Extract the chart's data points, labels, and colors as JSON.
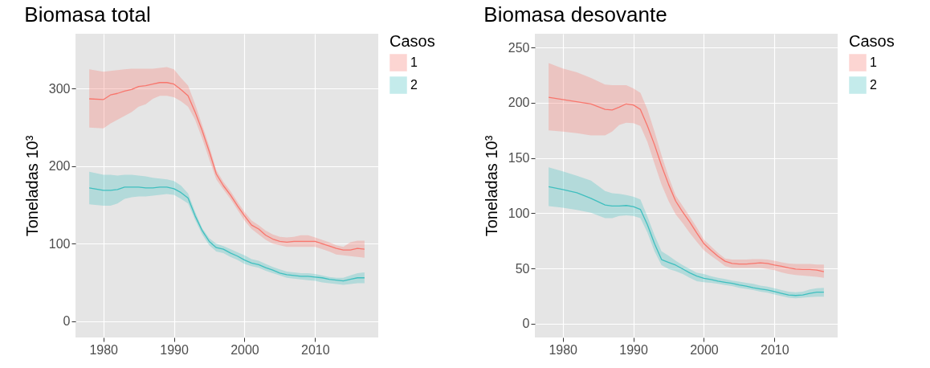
{
  "chart_data": [
    {
      "type": "line",
      "title": "Biomasa total",
      "ylabel": "Toneladas 10³",
      "legend_title": "Casos",
      "legend": "right",
      "grid": true,
      "x": [
        1978,
        1980,
        1981,
        1982,
        1983,
        1984,
        1985,
        1986,
        1987,
        1988,
        1989,
        1990,
        1991,
        1992,
        1993,
        1994,
        1995,
        1996,
        1997,
        1998,
        1999,
        2000,
        2001,
        2002,
        2003,
        2004,
        2005,
        2006,
        2007,
        2008,
        2009,
        2010,
        2011,
        2012,
        2013,
        2014,
        2015,
        2016,
        2017
      ],
      "xlim": [
        1976.05,
        2018.95
      ],
      "xticks": [
        1980,
        1990,
        2000,
        2010
      ],
      "ylim": [
        -21,
        371
      ],
      "yticks": [
        0,
        100,
        200,
        300
      ],
      "series": [
        {
          "name": "1",
          "color": "#f8766d",
          "values": [
            287,
            286,
            292,
            294,
            297,
            299,
            303,
            304,
            306,
            308,
            308,
            306,
            299,
            291,
            270,
            246,
            219,
            190,
            175,
            163,
            149,
            136,
            124,
            119,
            111,
            106,
            103,
            102,
            103,
            103,
            103,
            103,
            100,
            97,
            94,
            92,
            92,
            94,
            93
          ],
          "lower": [
            250,
            249,
            255,
            260,
            265,
            270,
            277,
            280,
            287,
            291,
            291,
            289,
            284,
            277,
            260,
            236,
            209,
            183,
            170,
            158,
            144,
            130,
            119,
            112,
            105,
            100,
            98,
            96,
            96,
            96,
            96,
            96,
            93,
            90,
            86,
            85,
            84,
            83,
            82
          ],
          "upper": [
            325,
            322,
            323,
            324,
            325,
            326,
            326,
            326,
            326,
            327,
            328,
            325,
            314,
            304,
            280,
            253,
            226,
            195,
            180,
            168,
            154,
            141,
            130,
            124,
            117,
            112,
            109,
            108,
            109,
            111,
            111,
            108,
            105,
            102,
            98,
            96,
            102,
            104,
            104
          ]
        },
        {
          "name": "2",
          "color": "#3fbfbf",
          "values": [
            172,
            169,
            169,
            170,
            173,
            173,
            173,
            172,
            172,
            173,
            173,
            171,
            166,
            159,
            136,
            117,
            103,
            95,
            93,
            88,
            84,
            79,
            75,
            73,
            69,
            66,
            62,
            60,
            59,
            58,
            58,
            57,
            56,
            54,
            53,
            52,
            54,
            56,
            56
          ],
          "lower": [
            151,
            149,
            149,
            152,
            158,
            160,
            161,
            161,
            162,
            163,
            164,
            163,
            158,
            152,
            131,
            112,
            98,
            90,
            88,
            83,
            79,
            74,
            71,
            69,
            65,
            62,
            59,
            56,
            55,
            54,
            53,
            52,
            50,
            49,
            48,
            47,
            48,
            49,
            49
          ],
          "upper": [
            193,
            189,
            189,
            188,
            189,
            189,
            188,
            187,
            185,
            184,
            183,
            181,
            175,
            165,
            141,
            120,
            107,
            100,
            97,
            93,
            89,
            85,
            80,
            78,
            74,
            70,
            67,
            64,
            63,
            62,
            62,
            61,
            59,
            57,
            56,
            56,
            59,
            62,
            63
          ]
        }
      ]
    },
    {
      "type": "line",
      "title": "Biomasa desovante",
      "ylabel": "Toneladas 10³",
      "legend_title": "Casos",
      "legend": "right",
      "grid": true,
      "x": [
        1978,
        1980,
        1982,
        1984,
        1986,
        1987,
        1988,
        1989,
        1990,
        1991,
        1992,
        1993,
        1994,
        1995,
        1996,
        1997,
        1998,
        1999,
        2000,
        2001,
        2002,
        2003,
        2004,
        2005,
        2006,
        2007,
        2008,
        2009,
        2010,
        2011,
        2012,
        2013,
        2014,
        2015,
        2016,
        2017
      ],
      "xlim": [
        1976.05,
        2018.95
      ],
      "xticks": [
        1980,
        1990,
        2000,
        2010
      ],
      "ylim": [
        -12.5,
        262.5
      ],
      "yticks": [
        0,
        50,
        100,
        150,
        200,
        250
      ],
      "series": [
        {
          "name": "1",
          "color": "#f8766d",
          "values": [
            205,
            203,
            201,
            199,
            194,
            193.5,
            196,
            199,
            198,
            194,
            179,
            162,
            143,
            126,
            111,
            101,
            92,
            82,
            72.5,
            66.5,
            61,
            56.5,
            54.5,
            54,
            54,
            54.5,
            55,
            54.5,
            53,
            52,
            50.5,
            49.5,
            49,
            49,
            48.5,
            47
          ],
          "lower": [
            175,
            174,
            172.5,
            170.5,
            170.5,
            174,
            180,
            182,
            181.5,
            179,
            164.5,
            145,
            126,
            111,
            99,
            91,
            82,
            74,
            66.5,
            61.5,
            57,
            52,
            50.5,
            50.5,
            50.5,
            50.5,
            50.5,
            49.5,
            48.5,
            46.5,
            45,
            44,
            43.5,
            43,
            42.5,
            41.5
          ],
          "upper": [
            236,
            231,
            227.5,
            222.5,
            216.5,
            216,
            216,
            216,
            213,
            209,
            194,
            174,
            152.5,
            133,
            116,
            106.5,
            97,
            87,
            76,
            70,
            64,
            59,
            58,
            58,
            58,
            58.5,
            58.5,
            58,
            57,
            55.5,
            54.5,
            54,
            54,
            54,
            53.5,
            53.5
          ]
        },
        {
          "name": "2",
          "color": "#3fbfbf",
          "values": [
            124,
            121.5,
            118.5,
            113.5,
            107.5,
            106.5,
            106.5,
            107,
            106,
            103.5,
            89.5,
            72.5,
            58,
            55.5,
            53,
            49.5,
            46,
            43,
            41,
            40,
            38.5,
            37.5,
            36.5,
            35,
            34,
            32.5,
            31.5,
            30.5,
            29,
            27.5,
            26,
            25.5,
            26,
            27.5,
            28.5,
            28.5
          ],
          "lower": [
            106.5,
            105,
            103,
            100.5,
            95.5,
            95.5,
            97.5,
            98,
            97.5,
            95.5,
            82.5,
            65.5,
            53,
            49.5,
            47.5,
            45,
            41.5,
            38.5,
            37.5,
            37,
            36,
            35,
            34,
            32.5,
            31.5,
            30.5,
            29,
            28,
            26.5,
            25,
            23.5,
            23,
            23.5,
            24,
            24.5,
            24.5
          ],
          "upper": [
            141.5,
            138,
            134,
            129.5,
            120,
            118,
            117.5,
            116.5,
            115,
            112.5,
            97,
            80,
            65.5,
            61.5,
            57,
            53,
            49.5,
            46,
            45,
            43,
            41.5,
            40.5,
            39,
            38,
            37,
            36,
            34.5,
            33.5,
            32,
            30.5,
            29,
            28.5,
            29,
            31,
            32,
            32.5
          ]
        }
      ]
    }
  ]
}
